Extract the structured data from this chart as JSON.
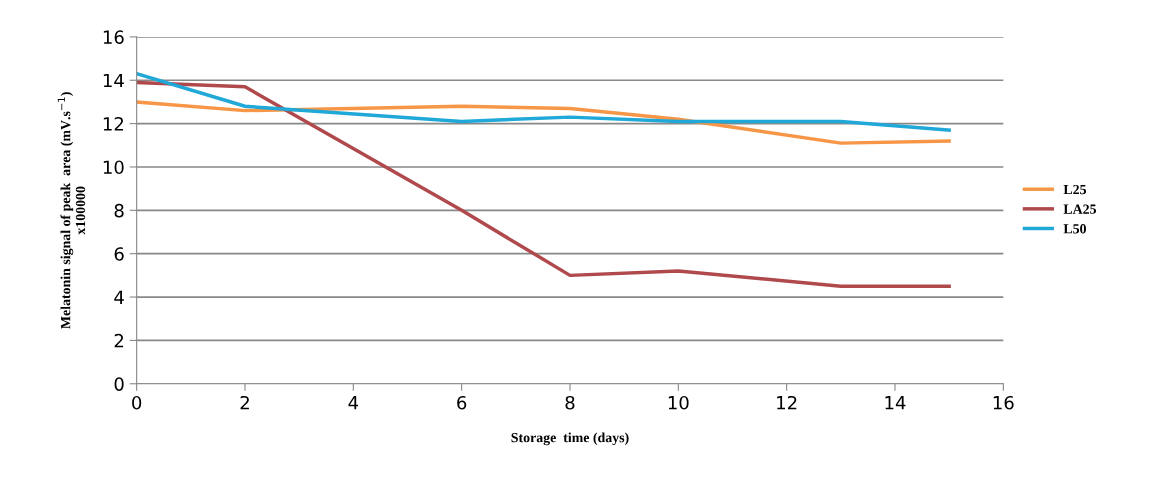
{
  "chart_data": {
    "type": "line",
    "xlabel": "Storage  time (days)",
    "ylabel": "Melatonin signal of peak  area (mV.s$^{−1}$)\nx100000",
    "x": [
      0,
      2,
      6,
      8,
      10,
      13,
      15
    ],
    "series": [
      {
        "name": "L25",
        "color": "#f79646",
        "values": [
          13.0,
          12.6,
          12.8,
          12.7,
          12.2,
          11.1,
          11.2
        ]
      },
      {
        "name": "LA25",
        "color": "#b0494c",
        "values": [
          13.9,
          13.7,
          8.0,
          5.0,
          5.2,
          4.5,
          4.5
        ]
      },
      {
        "name": "L50",
        "color": "#1fa8d8",
        "values": [
          14.3,
          12.8,
          12.1,
          12.3,
          12.1,
          12.1,
          11.7
        ]
      }
    ],
    "xlim": [
      0,
      16
    ],
    "xticks": [
      0,
      2,
      4,
      6,
      8,
      10,
      12,
      14,
      16
    ],
    "ylim": [
      0,
      16
    ],
    "yticks": [
      0,
      2,
      4,
      6,
      8,
      10,
      12,
      14,
      16
    ],
    "grid": "y",
    "legend": "right",
    "marker": "none",
    "line_style": "solid"
  }
}
